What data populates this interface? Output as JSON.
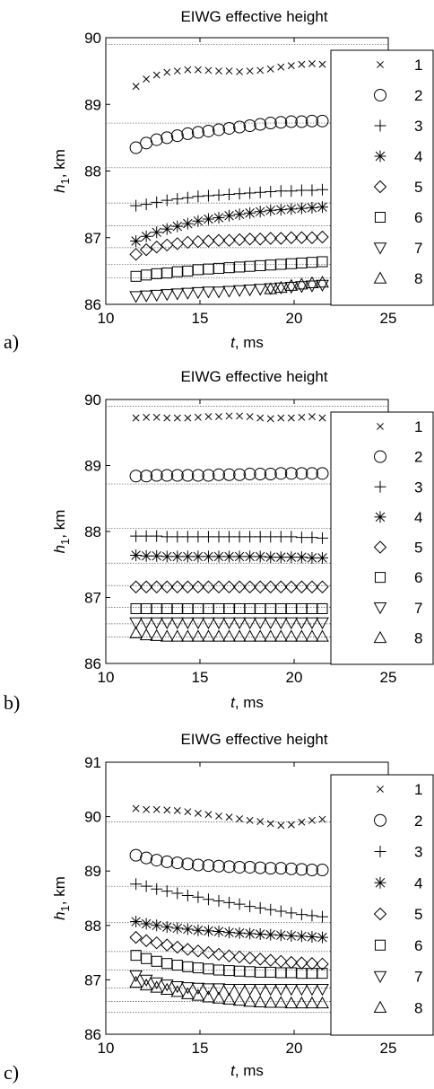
{
  "chart_data": [
    {
      "panel_label": "a)",
      "type": "scatter",
      "title": "EIWG effective height",
      "xlabel": "t, ms",
      "ylabel_main": "h",
      "ylabel_sub": "1",
      "ylabel_rest": ", km",
      "xlim": [
        10,
        25
      ],
      "ylim": [
        86,
        90
      ],
      "xticks": [
        "10",
        "15",
        "20",
        "25"
      ],
      "yticks": [
        "86",
        "87",
        "88",
        "89",
        "90"
      ],
      "xtick_values": [
        10,
        15,
        20,
        25
      ],
      "ytick_values": [
        86,
        87,
        88,
        89,
        90
      ],
      "reference_lines": [
        89.9,
        88.72,
        88.05,
        87.52,
        87.18,
        86.85,
        86.6,
        86.4
      ],
      "legend_position": "right",
      "x": [
        11.6,
        12.15,
        12.7,
        13.25,
        13.8,
        14.35,
        14.9,
        15.45,
        16.0,
        16.55,
        17.1,
        17.65,
        18.2,
        18.75,
        19.3,
        19.85,
        20.4,
        20.95,
        21.5
      ],
      "series": [
        {
          "name": "1",
          "marker": "x",
          "values": [
            89.27,
            89.38,
            89.44,
            89.48,
            89.5,
            89.52,
            89.52,
            89.51,
            89.5,
            89.5,
            89.49,
            89.5,
            89.51,
            89.53,
            89.56,
            89.58,
            89.6,
            89.61,
            89.6
          ]
        },
        {
          "name": "2",
          "marker": "circle",
          "values": [
            88.35,
            88.42,
            88.47,
            88.5,
            88.53,
            88.56,
            88.58,
            88.6,
            88.62,
            88.64,
            88.66,
            88.68,
            88.7,
            88.72,
            88.73,
            88.74,
            88.74,
            88.75,
            88.75
          ]
        },
        {
          "name": "3",
          "marker": "plus",
          "values": [
            87.48,
            87.5,
            87.53,
            87.56,
            87.58,
            87.6,
            87.62,
            87.63,
            87.64,
            87.65,
            87.66,
            87.67,
            87.68,
            87.69,
            87.7,
            87.7,
            87.71,
            87.71,
            87.72
          ]
        },
        {
          "name": "4",
          "marker": "asterisk",
          "values": [
            86.95,
            87.02,
            87.08,
            87.13,
            87.17,
            87.21,
            87.25,
            87.28,
            87.3,
            87.33,
            87.35,
            87.37,
            87.39,
            87.41,
            87.42,
            87.43,
            87.44,
            87.45,
            87.46
          ]
        },
        {
          "name": "5",
          "marker": "diamond",
          "values": [
            86.75,
            86.82,
            86.86,
            86.89,
            86.91,
            86.93,
            86.94,
            86.95,
            86.96,
            86.96,
            86.97,
            86.98,
            86.98,
            86.99,
            86.99,
            87.0,
            87.0,
            87.0,
            87.01
          ]
        },
        {
          "name": "6",
          "marker": "square",
          "values": [
            86.42,
            86.44,
            86.46,
            86.47,
            86.49,
            86.5,
            86.52,
            86.53,
            86.54,
            86.55,
            86.56,
            86.57,
            86.58,
            86.59,
            86.6,
            86.61,
            86.62,
            86.63,
            86.64
          ]
        },
        {
          "name": "7",
          "marker": "triangle-down",
          "values": [
            86.12,
            86.13,
            86.14,
            86.15,
            86.16,
            86.17,
            86.18,
            86.19,
            86.19,
            86.2,
            86.21,
            86.22,
            86.23,
            86.24,
            86.25,
            86.26,
            86.27,
            86.28,
            86.29
          ]
        },
        {
          "name": "8",
          "marker": "triangle-up",
          "values": [
            null,
            null,
            null,
            null,
            null,
            null,
            null,
            null,
            null,
            null,
            null,
            null,
            null,
            86.23,
            86.25,
            86.28,
            86.3,
            86.32,
            86.33
          ]
        }
      ]
    },
    {
      "panel_label": "b)",
      "type": "scatter",
      "title": "EIWG effective height",
      "xlabel": "t, ms",
      "ylabel_main": "h",
      "ylabel_sub": "1",
      "ylabel_rest": ", km",
      "xlim": [
        10,
        25
      ],
      "ylim": [
        86,
        90
      ],
      "xticks": [
        "10",
        "15",
        "20",
        "25"
      ],
      "yticks": [
        "86",
        "87",
        "88",
        "89",
        "90"
      ],
      "xtick_values": [
        10,
        15,
        20,
        25
      ],
      "ytick_values": [
        86,
        87,
        88,
        89,
        90
      ],
      "reference_lines": [
        89.9,
        88.72,
        88.05,
        87.52,
        87.18,
        86.85,
        86.6,
        86.4
      ],
      "legend_position": "right",
      "x": [
        11.6,
        12.15,
        12.7,
        13.25,
        13.8,
        14.35,
        14.9,
        15.45,
        16.0,
        16.55,
        17.1,
        17.65,
        18.2,
        18.75,
        19.3,
        19.85,
        20.4,
        20.95,
        21.5
      ],
      "series": [
        {
          "name": "1",
          "marker": "x",
          "values": [
            89.72,
            89.73,
            89.73,
            89.72,
            89.72,
            89.72,
            89.73,
            89.74,
            89.74,
            89.75,
            89.75,
            89.74,
            89.72,
            89.71,
            89.72,
            89.72,
            89.73,
            89.74,
            89.72
          ]
        },
        {
          "name": "2",
          "marker": "circle",
          "values": [
            88.84,
            88.84,
            88.85,
            88.85,
            88.85,
            88.85,
            88.85,
            88.85,
            88.86,
            88.86,
            88.86,
            88.87,
            88.87,
            88.87,
            88.88,
            88.88,
            88.88,
            88.88,
            88.88
          ]
        },
        {
          "name": "3",
          "marker": "plus",
          "values": [
            87.93,
            87.93,
            87.93,
            87.92,
            87.92,
            87.92,
            87.92,
            87.92,
            87.92,
            87.92,
            87.92,
            87.92,
            87.92,
            87.92,
            87.92,
            87.92,
            87.91,
            87.91,
            87.9
          ]
        },
        {
          "name": "4",
          "marker": "asterisk",
          "values": [
            87.64,
            87.63,
            87.63,
            87.62,
            87.62,
            87.62,
            87.62,
            87.62,
            87.62,
            87.62,
            87.62,
            87.62,
            87.62,
            87.61,
            87.61,
            87.61,
            87.61,
            87.6,
            87.6
          ]
        },
        {
          "name": "5",
          "marker": "diamond",
          "values": [
            87.16,
            87.16,
            87.16,
            87.16,
            87.16,
            87.16,
            87.16,
            87.16,
            87.16,
            87.16,
            87.16,
            87.16,
            87.16,
            87.16,
            87.16,
            87.16,
            87.16,
            87.16,
            87.16
          ]
        },
        {
          "name": "6",
          "marker": "square",
          "values": [
            86.83,
            86.83,
            86.83,
            86.83,
            86.83,
            86.83,
            86.83,
            86.83,
            86.83,
            86.83,
            86.83,
            86.83,
            86.83,
            86.83,
            86.83,
            86.83,
            86.83,
            86.83,
            86.83
          ]
        },
        {
          "name": "7",
          "marker": "triangle-down",
          "values": [
            86.62,
            86.62,
            86.62,
            86.62,
            86.62,
            86.62,
            86.62,
            86.62,
            86.62,
            86.62,
            86.62,
            86.62,
            86.62,
            86.62,
            86.62,
            86.62,
            86.62,
            86.62,
            86.62
          ]
        },
        {
          "name": "8",
          "marker": "triangle-up",
          "values": [
            86.46,
            86.43,
            86.42,
            86.41,
            86.41,
            86.41,
            86.41,
            86.41,
            86.41,
            86.41,
            86.41,
            86.41,
            86.41,
            86.41,
            86.41,
            86.41,
            86.41,
            86.41,
            86.41
          ]
        }
      ]
    },
    {
      "panel_label": "c)",
      "type": "scatter",
      "title": "EIWG effective height",
      "xlabel": "t, ms",
      "ylabel_main": "h",
      "ylabel_sub": "1",
      "ylabel_rest": ", km",
      "xlim": [
        10,
        25
      ],
      "ylim": [
        86,
        91
      ],
      "xticks": [
        "10",
        "15",
        "20",
        "25"
      ],
      "yticks": [
        "86",
        "87",
        "88",
        "89",
        "90",
        "91"
      ],
      "xtick_values": [
        10,
        15,
        20,
        25
      ],
      "ytick_values": [
        86,
        87,
        88,
        89,
        90,
        91
      ],
      "reference_lines": [
        89.9,
        88.72,
        88.05,
        87.52,
        87.18,
        86.85,
        86.6,
        86.4
      ],
      "legend_position": "right",
      "x": [
        11.6,
        12.15,
        12.7,
        13.25,
        13.8,
        14.35,
        14.9,
        15.45,
        16.0,
        16.55,
        17.1,
        17.65,
        18.2,
        18.75,
        19.3,
        19.85,
        20.4,
        20.95,
        21.5
      ],
      "series": [
        {
          "name": "1",
          "marker": "x",
          "values": [
            90.15,
            90.13,
            90.13,
            90.12,
            90.11,
            90.09,
            90.06,
            90.04,
            90.01,
            89.99,
            89.96,
            89.93,
            89.91,
            89.87,
            89.84,
            89.85,
            89.9,
            89.93,
            89.95
          ]
        },
        {
          "name": "2",
          "marker": "circle",
          "values": [
            89.29,
            89.24,
            89.2,
            89.17,
            89.15,
            89.13,
            89.11,
            89.1,
            89.09,
            89.08,
            89.07,
            89.07,
            89.06,
            89.05,
            89.05,
            89.04,
            89.03,
            89.02,
            89.02
          ]
        },
        {
          "name": "3",
          "marker": "plus",
          "values": [
            88.76,
            88.72,
            88.67,
            88.63,
            88.59,
            88.55,
            88.52,
            88.48,
            88.45,
            88.42,
            88.39,
            88.35,
            88.32,
            88.29,
            88.26,
            88.23,
            88.2,
            88.18,
            88.16
          ]
        },
        {
          "name": "4",
          "marker": "asterisk",
          "values": [
            88.07,
            88.03,
            88.0,
            87.97,
            87.95,
            87.93,
            87.91,
            87.9,
            87.89,
            87.87,
            87.86,
            87.85,
            87.84,
            87.83,
            87.82,
            87.81,
            87.8,
            87.79,
            87.78
          ]
        },
        {
          "name": "5",
          "marker": "diamond",
          "values": [
            87.78,
            87.72,
            87.68,
            87.64,
            87.6,
            87.56,
            87.53,
            87.5,
            87.47,
            87.44,
            87.42,
            87.4,
            87.38,
            87.36,
            87.34,
            87.32,
            87.31,
            87.3,
            87.29
          ]
        },
        {
          "name": "6",
          "marker": "square",
          "values": [
            87.45,
            87.39,
            87.34,
            87.3,
            87.27,
            87.24,
            87.22,
            87.2,
            87.18,
            87.17,
            87.16,
            87.15,
            87.14,
            87.14,
            87.13,
            87.13,
            87.12,
            87.12,
            87.12
          ]
        },
        {
          "name": "7",
          "marker": "triangle-down",
          "values": [
            87.08,
            87.0,
            86.95,
            86.91,
            86.88,
            86.86,
            86.85,
            86.84,
            86.84,
            86.83,
            86.83,
            86.83,
            86.83,
            86.83,
            86.83,
            86.83,
            86.83,
            86.83,
            86.83
          ]
        },
        {
          "name": "8",
          "marker": "triangle-up",
          "values": [
            86.95,
            86.9,
            86.86,
            86.82,
            86.78,
            86.74,
            86.71,
            86.68,
            86.66,
            86.64,
            86.62,
            86.6,
            86.59,
            86.58,
            86.58,
            86.57,
            86.57,
            86.57,
            86.57
          ]
        }
      ]
    }
  ]
}
